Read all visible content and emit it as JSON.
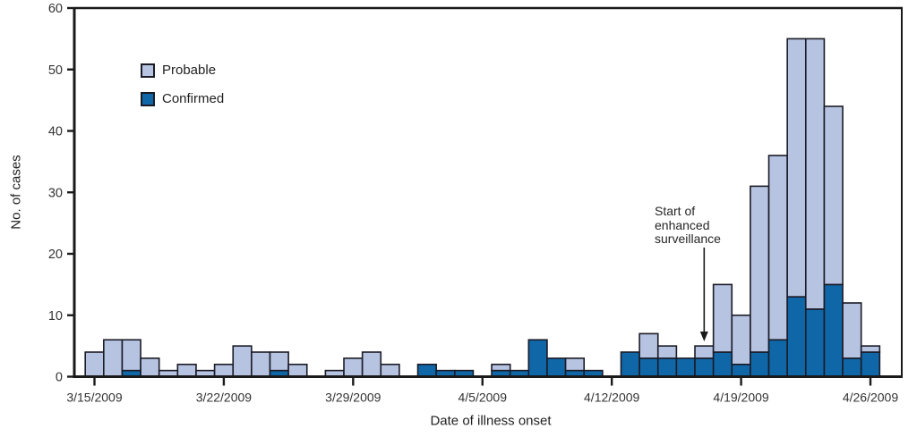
{
  "colors": {
    "probable": "#b6c3e1",
    "confirmed": "#0f67a8",
    "bar_outline": "#1b1b26",
    "axis": "#1a1a1a",
    "tick_text": "#333333"
  },
  "chart_data": {
    "type": "bar",
    "stacked": true,
    "title": "",
    "xlabel": "Date of illness onset",
    "ylabel": "No. of cases",
    "ylim": [
      0,
      60
    ],
    "y_tick_labels": [
      0,
      10,
      20,
      30,
      40,
      50,
      60
    ],
    "grid": false,
    "legend_position": "upper-left-inside",
    "x_tick_labels": [
      "3/15/2009",
      "3/22/2009",
      "3/29/2009",
      "4/5/2009",
      "4/12/2009",
      "4/19/2009",
      "4/26/2009"
    ],
    "x_tick_day_indices": [
      0,
      7,
      14,
      21,
      28,
      35,
      42
    ],
    "dates": [
      "3/15/2009",
      "3/16/2009",
      "3/17/2009",
      "3/18/2009",
      "3/19/2009",
      "3/20/2009",
      "3/21/2009",
      "3/22/2009",
      "3/23/2009",
      "3/24/2009",
      "3/25/2009",
      "3/26/2009",
      "3/27/2009",
      "3/28/2009",
      "3/29/2009",
      "3/30/2009",
      "3/31/2009",
      "4/1/2009",
      "4/2/2009",
      "4/3/2009",
      "4/4/2009",
      "4/5/2009",
      "4/6/2009",
      "4/7/2009",
      "4/8/2009",
      "4/9/2009",
      "4/10/2009",
      "4/11/2009",
      "4/12/2009",
      "4/13/2009",
      "4/14/2009",
      "4/15/2009",
      "4/16/2009",
      "4/17/2009",
      "4/18/2009",
      "4/19/2009",
      "4/20/2009",
      "4/21/2009",
      "4/22/2009",
      "4/23/2009",
      "4/24/2009",
      "4/25/2009",
      "4/26/2009"
    ],
    "series": [
      {
        "name": "Probable",
        "color": "#b6c3e1",
        "values": [
          4,
          6,
          5,
          3,
          1,
          2,
          1,
          2,
          5,
          4,
          3,
          2,
          0,
          1,
          3,
          4,
          2,
          0,
          0,
          0,
          0,
          0,
          1,
          0,
          0,
          0,
          2,
          0,
          0,
          0,
          4,
          2,
          0,
          2,
          11,
          8,
          27,
          30,
          42,
          44,
          29,
          9,
          1
        ]
      },
      {
        "name": "Confirmed",
        "color": "#0f67a8",
        "values": [
          0,
          0,
          1,
          0,
          0,
          0,
          0,
          0,
          0,
          0,
          1,
          0,
          0,
          0,
          0,
          0,
          0,
          0,
          2,
          1,
          1,
          0,
          1,
          1,
          6,
          3,
          1,
          1,
          0,
          4,
          3,
          3,
          3,
          3,
          4,
          2,
          4,
          6,
          13,
          11,
          15,
          3,
          4
        ]
      }
    ],
    "totals": [
      4,
      6,
      6,
      3,
      1,
      2,
      1,
      2,
      5,
      4,
      4,
      2,
      0,
      1,
      3,
      4,
      2,
      0,
      2,
      1,
      1,
      0,
      2,
      1,
      6,
      3,
      3,
      1,
      0,
      4,
      7,
      5,
      3,
      5,
      15,
      10,
      31,
      36,
      55,
      55,
      44,
      12,
      5
    ],
    "annotation": {
      "lines": [
        "Start of",
        "enhanced",
        "surveillance"
      ],
      "arrow_target_date": "4/17/2009"
    }
  }
}
